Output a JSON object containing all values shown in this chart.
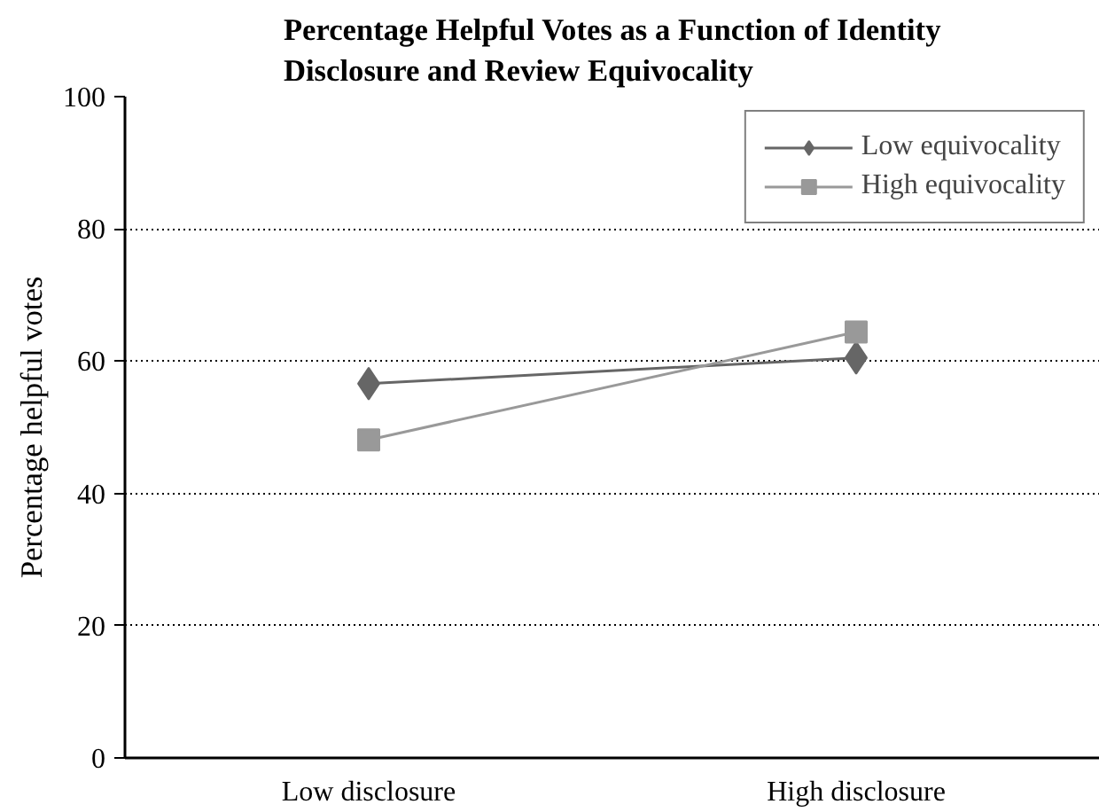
{
  "chart_data": {
    "type": "line",
    "title": "Percentage Helpful Votes as a Function of Identity Disclosure and Review Equivocality",
    "ylabel": "Percentage helpful votes",
    "categories": [
      "Low disclosure",
      "High disclosure"
    ],
    "series": [
      {
        "name": "Low equivocality",
        "color": "#666666",
        "values": [
          56.6,
          60.5
        ],
        "marker": "diamond"
      },
      {
        "name": "High equivocality",
        "color": "#999999",
        "values": [
          48.1,
          64.4
        ],
        "marker": "square"
      }
    ],
    "ylim": [
      0,
      100
    ],
    "yticks": [
      0,
      20,
      40,
      60,
      80,
      100
    ],
    "grid": "y",
    "legend": "top right",
    "line_style": "solid"
  }
}
